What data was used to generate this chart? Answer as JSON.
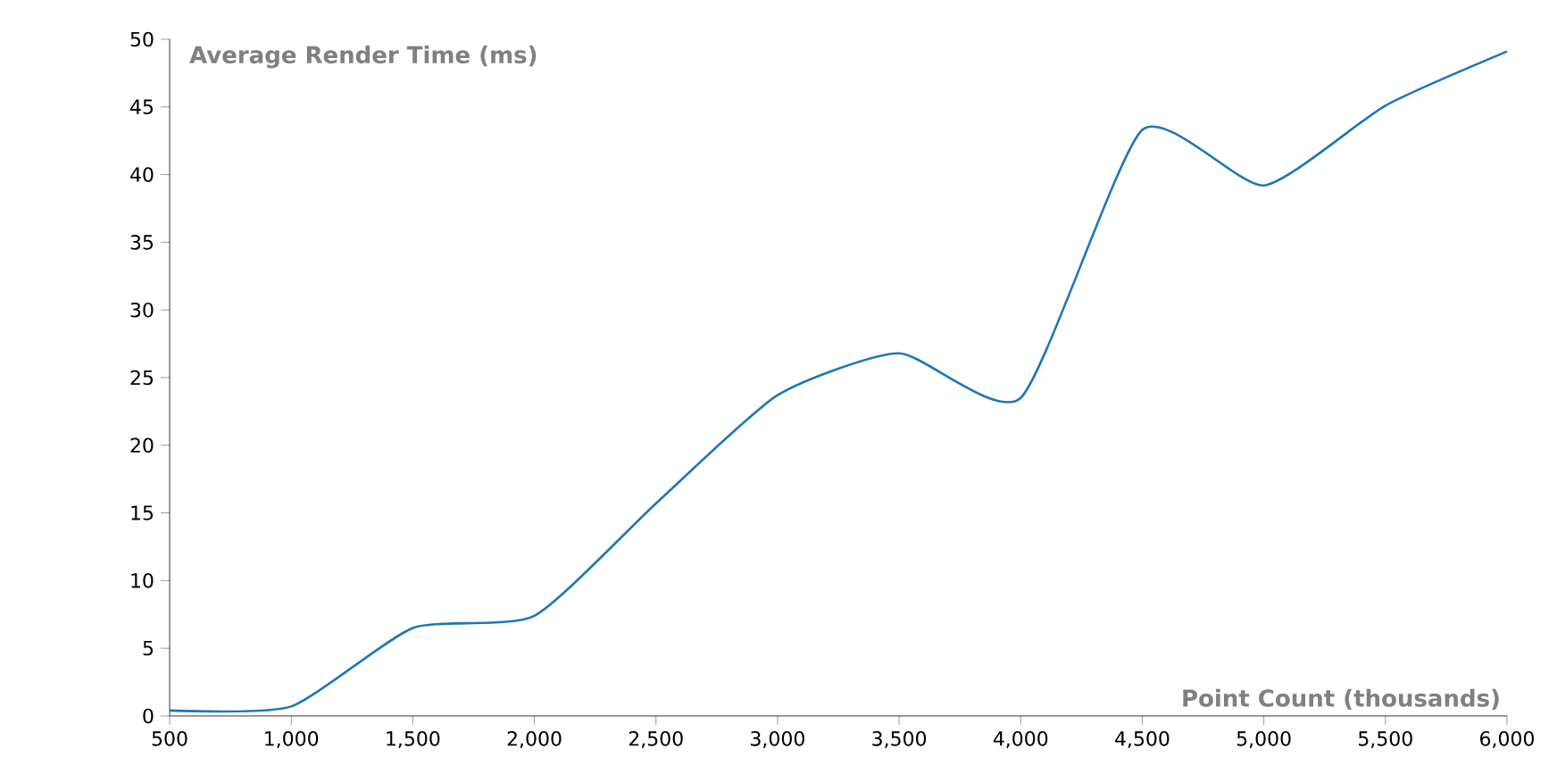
{
  "chart_data": {
    "type": "line",
    "xlabel": "Point Count (thousands)",
    "ylabel": "Average Render Time (ms)",
    "x": [
      500,
      1000,
      1500,
      2000,
      2500,
      3000,
      3500,
      4000,
      4500,
      5000,
      5500,
      6000
    ],
    "series": [
      {
        "color": "#1f77b4",
        "values": [
          0.4,
          0.7,
          6.5,
          7.4,
          15.7,
          23.7,
          26.8,
          23.5,
          43.3,
          39.2,
          45.1,
          49.1
        ]
      }
    ],
    "xlim": [
      500,
      6000
    ],
    "ylim": [
      0,
      50
    ],
    "xticks": [
      500,
      {
        "value": 1000,
        "label": "1,000"
      },
      {
        "value": 1500,
        "label": "1,500"
      },
      {
        "value": 2000,
        "label": "2,000"
      },
      {
        "value": 2500,
        "label": "2,500"
      },
      {
        "value": 3000,
        "label": "3,000"
      },
      {
        "value": 3500,
        "label": "3,500"
      },
      {
        "value": 4000,
        "label": "4,000"
      },
      {
        "value": 4500,
        "label": "4,500"
      },
      {
        "value": 5000,
        "label": "5,000"
      },
      {
        "value": 5500,
        "label": "5,500"
      },
      {
        "value": 6000,
        "label": "6,000"
      }
    ],
    "yticks": [
      0,
      5,
      10,
      15,
      20,
      25,
      30,
      35,
      40,
      45,
      50
    ],
    "grid": false,
    "marker": "none",
    "line_style": "solid"
  }
}
